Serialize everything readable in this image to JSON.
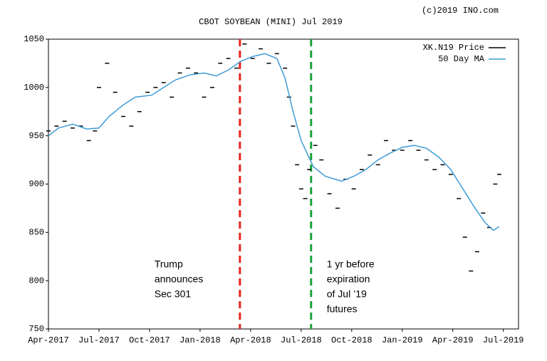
{
  "chart_data": {
    "type": "line",
    "title": "CBOT SOYBEAN (MINI) Jul 2019",
    "credit": "(c)2019 INO.com",
    "xlim": [
      2017.25,
      2019.575
    ],
    "xticks": [
      {
        "value": 2017.25,
        "label": "Apr-2017"
      },
      {
        "value": 2017.5,
        "label": "Jul-2017"
      },
      {
        "value": 2017.75,
        "label": "Oct-2017"
      },
      {
        "value": 2018.0,
        "label": "Jan-2018"
      },
      {
        "value": 2018.25,
        "label": "Apr-2018"
      },
      {
        "value": 2018.5,
        "label": "Jul-2018"
      },
      {
        "value": 2018.75,
        "label": "Oct-2018"
      },
      {
        "value": 2019.0,
        "label": "Jan-2019"
      },
      {
        "value": 2019.25,
        "label": "Apr-2019"
      },
      {
        "value": 2019.5,
        "label": "Jul-2019"
      }
    ],
    "ylim": [
      750,
      1050
    ],
    "yticks": [
      750,
      800,
      850,
      900,
      950,
      1000,
      1050
    ],
    "grid": false,
    "legend": "top-right",
    "series": [
      {
        "name": "XK.N19 Price",
        "color": "#000000",
        "style": "dash",
        "x": [
          2017.25,
          2017.29,
          2017.33,
          2017.37,
          2017.41,
          2017.45,
          2017.48,
          2017.5,
          2017.54,
          2017.58,
          2017.62,
          2017.66,
          2017.7,
          2017.74,
          2017.78,
          2017.82,
          2017.86,
          2017.9,
          2017.94,
          2017.98,
          2018.02,
          2018.06,
          2018.1,
          2018.14,
          2018.18,
          2018.22,
          2018.26,
          2018.3,
          2018.34,
          2018.38,
          2018.42,
          2018.44,
          2018.46,
          2018.48,
          2018.5,
          2018.52,
          2018.54,
          2018.57,
          2018.6,
          2018.64,
          2018.68,
          2018.72,
          2018.76,
          2018.8,
          2018.84,
          2018.88,
          2018.92,
          2018.96,
          2019.0,
          2019.04,
          2019.08,
          2019.12,
          2019.16,
          2019.2,
          2019.24,
          2019.28,
          2019.31,
          2019.34,
          2019.37,
          2019.4,
          2019.43,
          2019.46,
          2019.48
        ],
        "values": [
          955,
          960,
          965,
          958,
          960,
          945,
          955,
          1000,
          1025,
          995,
          970,
          960,
          975,
          995,
          1000,
          1005,
          990,
          1015,
          1020,
          1015,
          990,
          1000,
          1025,
          1030,
          1020,
          1045,
          1030,
          1040,
          1025,
          1035,
          1020,
          990,
          960,
          920,
          895,
          885,
          915,
          940,
          925,
          890,
          875,
          905,
          895,
          915,
          930,
          920,
          945,
          935,
          935,
          945,
          935,
          925,
          915,
          920,
          910,
          885,
          845,
          810,
          830,
          870,
          855,
          900,
          910
        ]
      },
      {
        "name": "50 Day MA",
        "color": "#3d9bd6",
        "style": "line",
        "x": [
          2017.25,
          2017.3,
          2017.37,
          2017.44,
          2017.5,
          2017.55,
          2017.62,
          2017.68,
          2017.76,
          2017.82,
          2017.88,
          2017.95,
          2018.02,
          2018.08,
          2018.14,
          2018.2,
          2018.26,
          2018.32,
          2018.38,
          2018.42,
          2018.46,
          2018.5,
          2018.56,
          2018.62,
          2018.7,
          2018.76,
          2018.82,
          2018.88,
          2018.94,
          2019.0,
          2019.06,
          2019.12,
          2019.18,
          2019.24,
          2019.3,
          2019.36,
          2019.41,
          2019.45,
          2019.48
        ],
        "values": [
          950,
          958,
          962,
          957,
          958,
          970,
          982,
          990,
          992,
          1000,
          1008,
          1013,
          1015,
          1012,
          1018,
          1027,
          1032,
          1035,
          1030,
          1010,
          975,
          945,
          918,
          908,
          903,
          908,
          915,
          925,
          932,
          938,
          940,
          937,
          928,
          915,
          895,
          875,
          860,
          852,
          856
        ]
      }
    ],
    "events": [
      {
        "x": 2018.197,
        "color": "#e8231c",
        "lines": [
          "Trump",
          "announces",
          "Sec 301"
        ]
      },
      {
        "x": 2018.549,
        "color": "#1aa33a",
        "lines": [
          "1 yr before",
          "expiration",
          "of Jul ’19",
          "futures"
        ]
      }
    ]
  }
}
